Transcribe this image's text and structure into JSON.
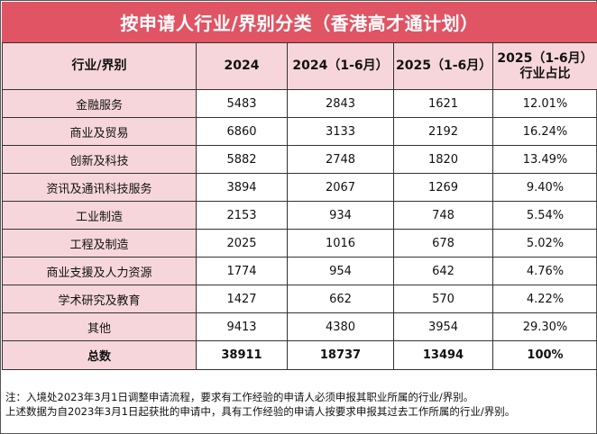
{
  "title": "按申请人行业/界别分类（香港高才通计划）",
  "header": {
    "col1": "行业/界别",
    "col2": "2024",
    "col3": "2024（1-6月）",
    "col4": "2025（1-6月）",
    "col5_line1": "2025（1-6月）",
    "col5_line2": "行业占比"
  },
  "rows": [
    {
      "category": "金融服务",
      "y2024": "5483",
      "h1_2024": "2843",
      "h1_2025": "1621",
      "share": "12.01%"
    },
    {
      "category": "商业及贸易",
      "y2024": "6860",
      "h1_2024": "3133",
      "h1_2025": "2192",
      "share": "16.24%"
    },
    {
      "category": "创新及科技",
      "y2024": "5882",
      "h1_2024": "2748",
      "h1_2025": "1820",
      "share": "13.49%"
    },
    {
      "category": "资讯及通讯科技服务",
      "y2024": "3894",
      "h1_2024": "2067",
      "h1_2025": "1269",
      "share": "9.40%"
    },
    {
      "category": "工业制造",
      "y2024": "2153",
      "h1_2024": "934",
      "h1_2025": "748",
      "share": "5.54%"
    },
    {
      "category": "工程及制造",
      "y2024": "2025",
      "h1_2024": "1016",
      "h1_2025": "678",
      "share": "5.02%"
    },
    {
      "category": "商业支援及人力资源",
      "y2024": "1774",
      "h1_2024": "954",
      "h1_2025": "642",
      "share": "4.76%"
    },
    {
      "category": "学术研究及教育",
      "y2024": "1427",
      "h1_2024": "662",
      "h1_2025": "570",
      "share": "4.22%"
    },
    {
      "category": "其他",
      "y2024": "9413",
      "h1_2024": "4380",
      "h1_2025": "3954",
      "share": "29.30%"
    }
  ],
  "total": {
    "category": "总数",
    "y2024": "38911",
    "h1_2024": "18737",
    "h1_2025": "13494",
    "share": "100%"
  },
  "notes": {
    "line1": "注：入境处2023年3月1日调整申请流程，要求有工作经验的申请人必须申报其职业所属的行业/界别。",
    "line2": "上述数据为自2023年3月1日起获批的申请中，具有工作经验的申请人按要求申报其过去工作所属的行业/界别。"
  },
  "colors": {
    "title_bg": "#e05464",
    "header_bg": "#f6d6da",
    "category_bg": "#f6d6da"
  }
}
